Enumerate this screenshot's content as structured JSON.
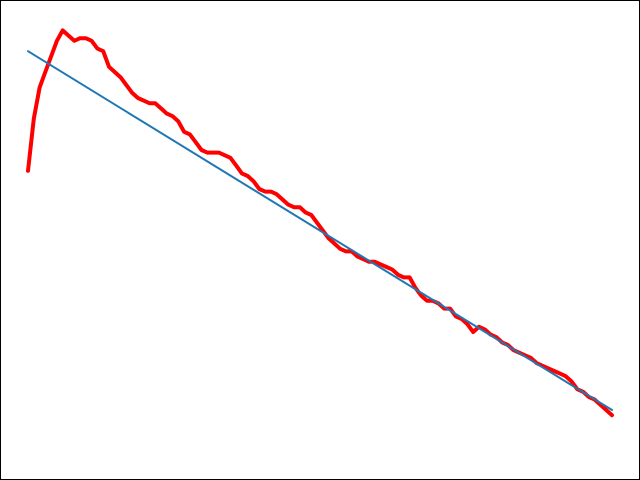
{
  "chart_data": {
    "type": "line",
    "title": "",
    "xlabel": "",
    "ylabel": "",
    "xlim": [
      0,
      101
    ],
    "ylim": [
      -0.05,
      0.8
    ],
    "grid": false,
    "axes_visible": false,
    "frame": true,
    "series": [
      {
        "kind": "measured",
        "color": "#ff0000",
        "x": [
          0,
          1,
          2,
          3,
          4,
          5,
          6,
          7,
          8,
          9,
          10,
          11,
          12,
          13,
          14,
          15,
          16,
          17,
          18,
          19,
          20,
          21,
          22,
          23,
          24,
          25,
          26,
          27,
          28,
          29,
          30,
          31,
          32,
          33,
          34,
          35,
          36,
          37,
          38,
          39,
          40,
          41,
          42,
          43,
          44,
          45,
          46,
          47,
          48,
          49,
          50,
          51,
          52,
          53,
          54,
          55,
          56,
          57,
          58,
          59,
          60,
          61,
          62,
          63,
          64,
          65,
          66,
          67,
          68,
          69,
          70,
          71,
          72,
          73,
          74,
          75,
          76,
          77,
          78,
          79,
          80,
          81,
          82,
          83,
          84,
          85,
          86,
          87,
          88,
          89,
          90,
          91,
          92,
          93,
          94,
          95,
          96,
          97,
          98,
          99,
          100,
          101
        ],
        "values": [
          0.51,
          0.61,
          0.67,
          0.7,
          0.73,
          0.76,
          0.78,
          0.77,
          0.76,
          0.765,
          0.765,
          0.76,
          0.745,
          0.74,
          0.71,
          0.7,
          0.69,
          0.675,
          0.66,
          0.65,
          0.645,
          0.64,
          0.64,
          0.63,
          0.62,
          0.615,
          0.605,
          0.585,
          0.58,
          0.565,
          0.55,
          0.545,
          0.545,
          0.545,
          0.54,
          0.535,
          0.52,
          0.505,
          0.5,
          0.49,
          0.475,
          0.47,
          0.47,
          0.465,
          0.455,
          0.445,
          0.44,
          0.44,
          0.43,
          0.425,
          0.41,
          0.395,
          0.38,
          0.37,
          0.36,
          0.355,
          0.355,
          0.345,
          0.34,
          0.335,
          0.335,
          0.33,
          0.325,
          0.32,
          0.31,
          0.305,
          0.305,
          0.285,
          0.27,
          0.26,
          0.26,
          0.255,
          0.245,
          0.245,
          0.23,
          0.225,
          0.215,
          0.2,
          0.21,
          0.205,
          0.195,
          0.19,
          0.18,
          0.175,
          0.165,
          0.16,
          0.155,
          0.15,
          0.14,
          0.135,
          0.13,
          0.125,
          0.12,
          0.115,
          0.105,
          0.09,
          0.085,
          0.075,
          0.07,
          0.06,
          0.05,
          0.04
        ]
      },
      {
        "kind": "fit",
        "color": "#1f77b4",
        "x": [
          0,
          101
        ],
        "values": [
          0.74,
          0.05
        ]
      }
    ]
  }
}
